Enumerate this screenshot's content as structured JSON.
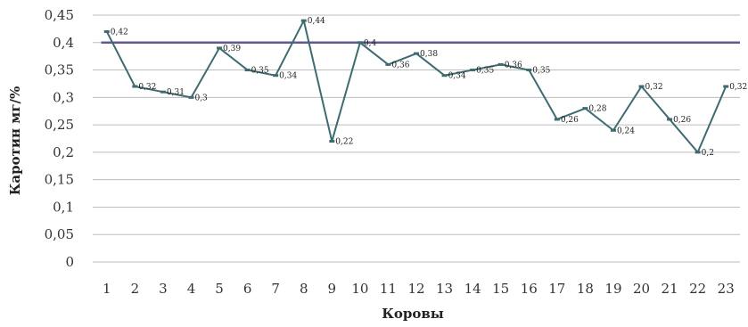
{
  "chart_data": {
    "type": "line",
    "title": "",
    "xlabel": "Коровы",
    "ylabel": "Каротин мг/%",
    "ylim": [
      0,
      0.45
    ],
    "yticks": [
      "0",
      "0,05",
      "0,1",
      "0,15",
      "0,2",
      "0,25",
      "0,3",
      "0,35",
      "0,4",
      "0,45"
    ],
    "grid": true,
    "legend": "none",
    "categories": [
      "1",
      "2",
      "3",
      "4",
      "5",
      "6",
      "7",
      "8",
      "9",
      "10",
      "11",
      "12",
      "13",
      "14",
      "15",
      "16",
      "17",
      "18",
      "19",
      "20",
      "21",
      "22",
      "23"
    ],
    "series": [
      {
        "values": [
          0.42,
          0.32,
          0.31,
          0.3,
          0.39,
          0.35,
          0.34,
          0.44,
          0.22,
          0.4,
          0.36,
          0.38,
          0.34,
          0.35,
          0.36,
          0.35,
          0.26,
          0.28,
          0.24,
          0.32,
          0.26,
          0.2,
          0.32
        ],
        "labels": [
          "0,42",
          "0,32",
          "0,31",
          "0,3",
          "0,39",
          "0,35",
          "0,34",
          "0,44",
          "0,22",
          "0,4",
          "0,36",
          "0,38",
          "0,34",
          "0,35",
          "0,36",
          "0,35",
          "0,26",
          "0,28",
          "0,24",
          "0,32",
          "0,26",
          "0,2",
          "0,32"
        ],
        "color": "#3d6b70"
      }
    ],
    "reference_line": {
      "value": 0.4,
      "color": "#5f5b91"
    },
    "colors": {
      "grid": "#bdbdbd",
      "marker": "#3d6b70"
    }
  }
}
